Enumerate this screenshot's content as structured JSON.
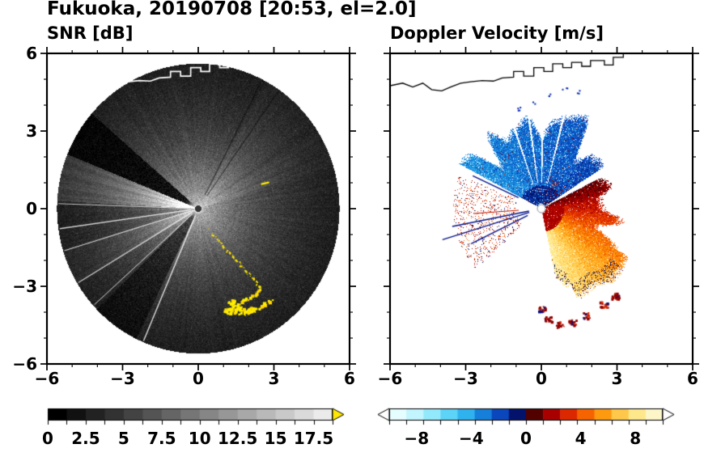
{
  "title": "Fukuoka, 20190708 [20:53, el=2.0]",
  "panels": {
    "left": {
      "title": "SNR [dB]"
    },
    "right": {
      "title": "Doppler Velocity [m/s]"
    }
  },
  "axes": {
    "xlim": [
      -6,
      6
    ],
    "ylim": [
      -6,
      6
    ],
    "major_step": 3,
    "minor_step": 1,
    "xtick_values": [
      -6,
      -3,
      0,
      3,
      6
    ],
    "xtick_labels": [
      "−6",
      "−3",
      "0",
      "3",
      "6"
    ],
    "ytick_values": [
      6,
      3,
      0,
      -3,
      -6
    ],
    "ytick_labels": [
      "6",
      "3",
      "0",
      "−3",
      "−6"
    ]
  },
  "colorbars": {
    "snr": {
      "min": 0,
      "max": 18.75,
      "tick_step": 1.25,
      "values": [
        0,
        2.5,
        5,
        7.5,
        10,
        12.5,
        15,
        17.5
      ],
      "labels": [
        "0",
        "2.5",
        "5",
        "7.5",
        "10",
        "12.5",
        "15",
        "17.5"
      ],
      "over_color": "#ffe800"
    },
    "velocity": {
      "min": -10,
      "max": 10,
      "tick_step": 1.25,
      "values": [
        -8,
        -4,
        0,
        4,
        8
      ],
      "labels": [
        "−8",
        "−4",
        "0",
        "4",
        "8"
      ],
      "under_color": "#ffffff",
      "over_color": "#ffffff",
      "palette": [
        "#e6fdff",
        "#c2f5fe",
        "#93e9fc",
        "#5cd3f7",
        "#30b2ee",
        "#157fd9",
        "#0a46bc",
        "#03126b",
        "#530000",
        "#a80000",
        "#dc2800",
        "#f56400",
        "#fe9a10",
        "#ffc84a",
        "#ffe88c",
        "#fdf6c8"
      ]
    }
  },
  "chart_data": {
    "type": "radar_ppi",
    "station": "Fukuoka",
    "date": "20190708",
    "time": "20:53",
    "elevation_deg": 2.0,
    "xlim_km": [
      -6,
      6
    ],
    "ylim_km": [
      -6,
      6
    ],
    "coastline_km": [
      [
        -6,
        4.75
      ],
      [
        -5.5,
        4.85
      ],
      [
        -5.1,
        4.7
      ],
      [
        -4.7,
        4.85
      ],
      [
        -4.35,
        4.6
      ],
      [
        -3.95,
        4.55
      ],
      [
        -3.6,
        4.7
      ],
      [
        -3.2,
        4.85
      ],
      [
        -2.8,
        4.9
      ],
      [
        -2.35,
        4.95
      ],
      [
        -1.9,
        4.93
      ],
      [
        -1.55,
        5.05
      ],
      [
        -1.1,
        5.08
      ],
      [
        -1.1,
        5.3
      ],
      [
        -0.7,
        5.3
      ],
      [
        -0.7,
        5.12
      ],
      [
        -0.3,
        5.12
      ],
      [
        -0.3,
        5.45
      ],
      [
        0.1,
        5.45
      ],
      [
        0.1,
        5.3
      ],
      [
        0.45,
        5.3
      ],
      [
        0.45,
        5.6
      ],
      [
        0.85,
        5.6
      ],
      [
        0.85,
        5.45
      ],
      [
        1.2,
        5.45
      ],
      [
        1.2,
        5.65
      ],
      [
        1.6,
        5.65
      ],
      [
        1.6,
        5.5
      ],
      [
        1.95,
        5.5
      ],
      [
        1.95,
        5.72
      ],
      [
        2.5,
        5.72
      ],
      [
        2.5,
        5.55
      ],
      [
        2.85,
        5.55
      ],
      [
        2.85,
        5.85
      ],
      [
        3.25,
        5.85
      ],
      [
        3.25,
        6.1
      ]
    ],
    "panels": [
      {
        "variable": "SNR",
        "units": "dB",
        "scan_radius_km": 5.6,
        "center": {
          "dot_km": 0.13,
          "halo_km": 0.5
        },
        "base_db": 13,
        "decay_km": 2.4,
        "noise_db": 3.2,
        "dark_wedges": [
          {
            "a1": 139,
            "a2": 158,
            "gain": 0.15
          },
          {
            "a1": 224,
            "a2": 244,
            "gain": 0.45
          }
        ],
        "bright_wedges": [
          {
            "a1": 158,
            "a2": 177,
            "gain": 1.85
          },
          {
            "a1": 196,
            "a2": 211,
            "gain": 1.3
          },
          {
            "a1": 18,
            "a2": 60,
            "gain": 1.12
          }
        ],
        "bright_rays": [
          178,
          188,
          197,
          211,
          222,
          247
        ],
        "dark_rays": [
          55,
          63
        ],
        "clutter_path_km": [
          [
            0.35,
            -0.75
          ],
          [
            0.62,
            -1.05
          ],
          [
            0.85,
            -1.3
          ],
          [
            1.05,
            -1.52
          ],
          [
            1.28,
            -1.75
          ],
          [
            1.5,
            -2.0
          ],
          [
            1.72,
            -2.22
          ],
          [
            1.95,
            -2.45
          ],
          [
            2.18,
            -2.7
          ],
          [
            2.35,
            -2.92
          ],
          [
            2.5,
            -3.15
          ],
          [
            2.28,
            -3.35
          ],
          [
            2.0,
            -3.5
          ],
          [
            1.72,
            -3.62
          ],
          [
            1.45,
            -3.78
          ],
          [
            1.25,
            -3.95
          ],
          [
            1.55,
            -4.05
          ],
          [
            1.88,
            -4.0
          ],
          [
            2.15,
            -3.92
          ],
          [
            2.45,
            -3.85
          ],
          [
            2.72,
            -3.68
          ],
          [
            2.95,
            -3.5
          ]
        ],
        "clutter_blobs_km": [
          [
            1.35,
            -3.62
          ],
          [
            1.6,
            -3.85
          ],
          [
            1.9,
            -4.0
          ],
          [
            2.15,
            -3.95
          ],
          [
            1.18,
            -3.98
          ]
        ],
        "clutter_spur_km": [
          [
            2.52,
            0.95
          ],
          [
            2.82,
            1.02
          ]
        ]
      },
      {
        "variable": "Doppler velocity",
        "units": "m/s",
        "blue_fan": {
          "a1": 33,
          "a2": 152,
          "rmin": 0.18,
          "rmax": 3.25,
          "rmax_jitter": 0.95,
          "v0": -1.8,
          "v_span": -1.6,
          "noise": 1.8,
          "gap_rays": [
            76,
            89,
            98,
            109
          ]
        },
        "warm_fan": {
          "a1": -78,
          "a2": 27,
          "rmin": 0.18,
          "rmax": 3.25,
          "rmax_jitter": 0.9,
          "v_at_a2": 0.7,
          "v_per_deg": 0.075,
          "noise": 1.7
        },
        "west_speckles": {
          "a1": 158,
          "a2": 222,
          "rmin": 1.0,
          "rmax": 3.5,
          "density": 0.11
        },
        "navy_rays": [
          [
            191,
            0.5,
            3.6
          ],
          [
            197,
            0.5,
            4.1
          ],
          [
            206,
            0.6,
            3.1
          ],
          [
            155,
            1.0,
            3.0
          ]
        ],
        "red_ray": [
          184,
          0.9,
          2.7
        ],
        "south_blobs_km": [
          [
            0.3,
            -4.3
          ],
          [
            0.75,
            -4.5
          ],
          [
            1.25,
            -4.42
          ],
          [
            1.8,
            -4.15
          ],
          [
            0.05,
            -3.9
          ],
          [
            2.5,
            -3.75
          ],
          [
            2.95,
            -3.4
          ]
        ],
        "north_specks_km": [
          [
            0.35,
            4.35
          ],
          [
            0.95,
            4.6
          ],
          [
            -0.3,
            4.05
          ],
          [
            1.45,
            4.5
          ],
          [
            -0.9,
            3.85
          ]
        ],
        "center_hole_km": 0.16
      }
    ]
  }
}
